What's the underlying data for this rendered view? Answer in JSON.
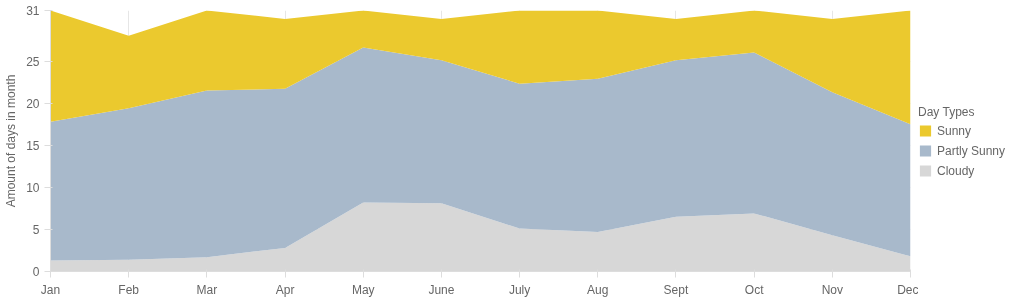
{
  "chart_data": {
    "type": "area",
    "stacked": true,
    "ylabel": "Amount of days in month",
    "legend_title": "Day Types",
    "legend": "right",
    "grid": true,
    "categories": [
      "Jan",
      "Feb",
      "Mar",
      "Apr",
      "May",
      "June",
      "July",
      "Aug",
      "Sept",
      "Oct",
      "Nov",
      "Dec"
    ],
    "ylim": [
      0,
      31
    ],
    "yticks": [
      0,
      5,
      10,
      15,
      20,
      25,
      31
    ],
    "series": [
      {
        "name": "Cloudy",
        "color": "#d7d7d7",
        "values": [
          1.3,
          1.4,
          1.7,
          2.8,
          8.2,
          8.1,
          5.1,
          4.7,
          6.5,
          6.9,
          4.3,
          1.8
        ]
      },
      {
        "name": "Partly Sunny",
        "color": "#a8b9cb",
        "values": [
          16.5,
          18.0,
          19.8,
          18.9,
          18.4,
          17.0,
          17.2,
          18.2,
          18.6,
          19.1,
          17.0,
          15.7
        ]
      },
      {
        "name": "Sunny",
        "color": "#ebc92e",
        "values": [
          13.2,
          8.6,
          9.5,
          8.3,
          4.4,
          4.9,
          8.7,
          8.1,
          4.9,
          5.0,
          8.7,
          13.5
        ]
      }
    ]
  }
}
